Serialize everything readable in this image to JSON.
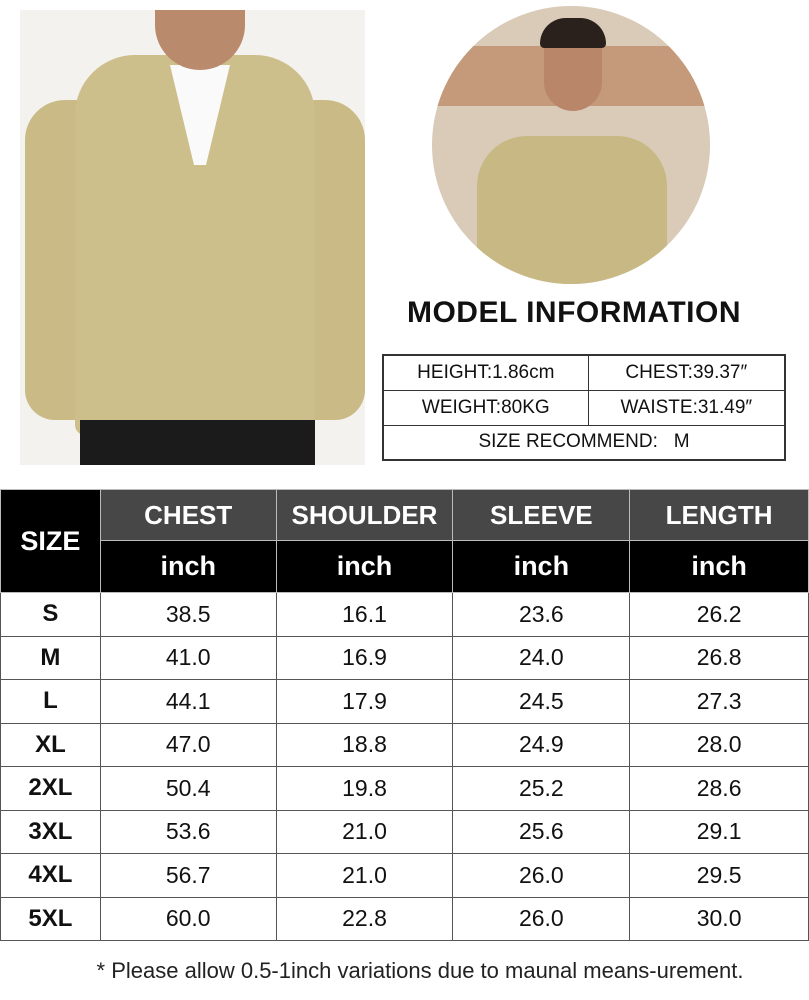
{
  "model_info": {
    "title": "MODEL INFORMATION",
    "height": "HEIGHT:1.86cm",
    "chest": "CHEST:39.37″",
    "weight": "WEIGHT:80KG",
    "waist": "WAISTE:31.49″",
    "size_recommend": "SIZE RECOMMEND:   M"
  },
  "size_chart": {
    "size_header": "SIZE",
    "columns": [
      {
        "label": "CHEST",
        "unit": "inch"
      },
      {
        "label": "SHOULDER",
        "unit": "inch"
      },
      {
        "label": "SLEEVE",
        "unit": "inch"
      },
      {
        "label": "LENGTH",
        "unit": "inch"
      }
    ],
    "rows": [
      {
        "size": "S",
        "values": [
          "38.5",
          "16.1",
          "23.6",
          "26.2"
        ]
      },
      {
        "size": "M",
        "values": [
          "41.0",
          "16.9",
          "24.0",
          "26.8"
        ]
      },
      {
        "size": "L",
        "values": [
          "44.1",
          "17.9",
          "24.5",
          "27.3"
        ]
      },
      {
        "size": "XL",
        "values": [
          "47.0",
          "18.8",
          "24.9",
          "28.0"
        ]
      },
      {
        "size": "2XL",
        "values": [
          "50.4",
          "19.8",
          "25.2",
          "28.6"
        ]
      },
      {
        "size": "3XL",
        "values": [
          "53.6",
          "21.0",
          "25.6",
          "29.1"
        ]
      },
      {
        "size": "4XL",
        "values": [
          "56.7",
          "21.0",
          "26.0",
          "29.5"
        ]
      },
      {
        "size": "5XL",
        "values": [
          "60.0",
          "22.8",
          "26.0",
          "30.0"
        ]
      }
    ]
  },
  "note": "* Please allow 0.5-1inch variations due to maunal means-urement.",
  "colors": {
    "sweater": "#cdbf8c",
    "header_top": "#474747",
    "header_bottom": "#000000"
  }
}
